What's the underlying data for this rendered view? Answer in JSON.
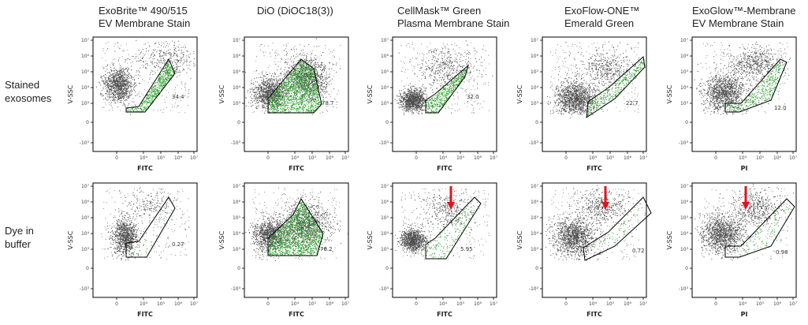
{
  "columns": [
    {
      "title_line1": "ExoBrite™ 490/515",
      "title_line2": "EV Membrane Stain"
    },
    {
      "title_line1": "DiO (DiOC18(3))",
      "title_line2": ""
    },
    {
      "title_line1": "CellMask™ Green",
      "title_line2": "Plasma Membrane Stain"
    },
    {
      "title_line1": "ExoFlow-ONE™",
      "title_line2": "Emerald Green"
    },
    {
      "title_line1": "ExoGlow™-Membrane",
      "title_line2": "EV Membrane Stain"
    }
  ],
  "rows": [
    {
      "label_line1": "Stained",
      "label_line2": "exosomes"
    },
    {
      "label_line1": "Dye in",
      "label_line2": "buffer"
    }
  ],
  "y_axis_label": "V-SSC",
  "y_ticks": [
    "10⁷",
    "10⁶",
    "10⁵",
    "10⁴",
    "10³",
    "0",
    "-10³"
  ],
  "x_ticks": [
    "0",
    "10⁴",
    "10⁵",
    "10⁶",
    "10⁷"
  ],
  "panels": [
    {
      "x_axis_label": "FITC",
      "gate_value": "34.4",
      "arrow": false
    },
    {
      "x_axis_label": "FITC",
      "gate_value": "78.7",
      "arrow": false
    },
    {
      "x_axis_label": "FITC",
      "gate_value": "32.0",
      "arrow": false
    },
    {
      "x_axis_label": "FITC",
      "gate_value": "22.7",
      "arrow": false
    },
    {
      "x_axis_label": "PI",
      "gate_value": "12.0",
      "arrow": false
    },
    {
      "x_axis_label": "FITC",
      "gate_value": "0.27",
      "arrow": false
    },
    {
      "x_axis_label": "FITC",
      "gate_value": "76.2",
      "arrow": false
    },
    {
      "x_axis_label": "FITC",
      "gate_value": "5.95",
      "arrow": true
    },
    {
      "x_axis_label": "FITC",
      "gate_value": "0.72",
      "arrow": true
    },
    {
      "x_axis_label": "PI",
      "gate_value": "0.98",
      "arrow": true
    }
  ],
  "colors": {
    "population": "#4d4d4d",
    "gated": "#1fa31f",
    "arrow": "#e0141e",
    "gate": "#000000"
  }
}
